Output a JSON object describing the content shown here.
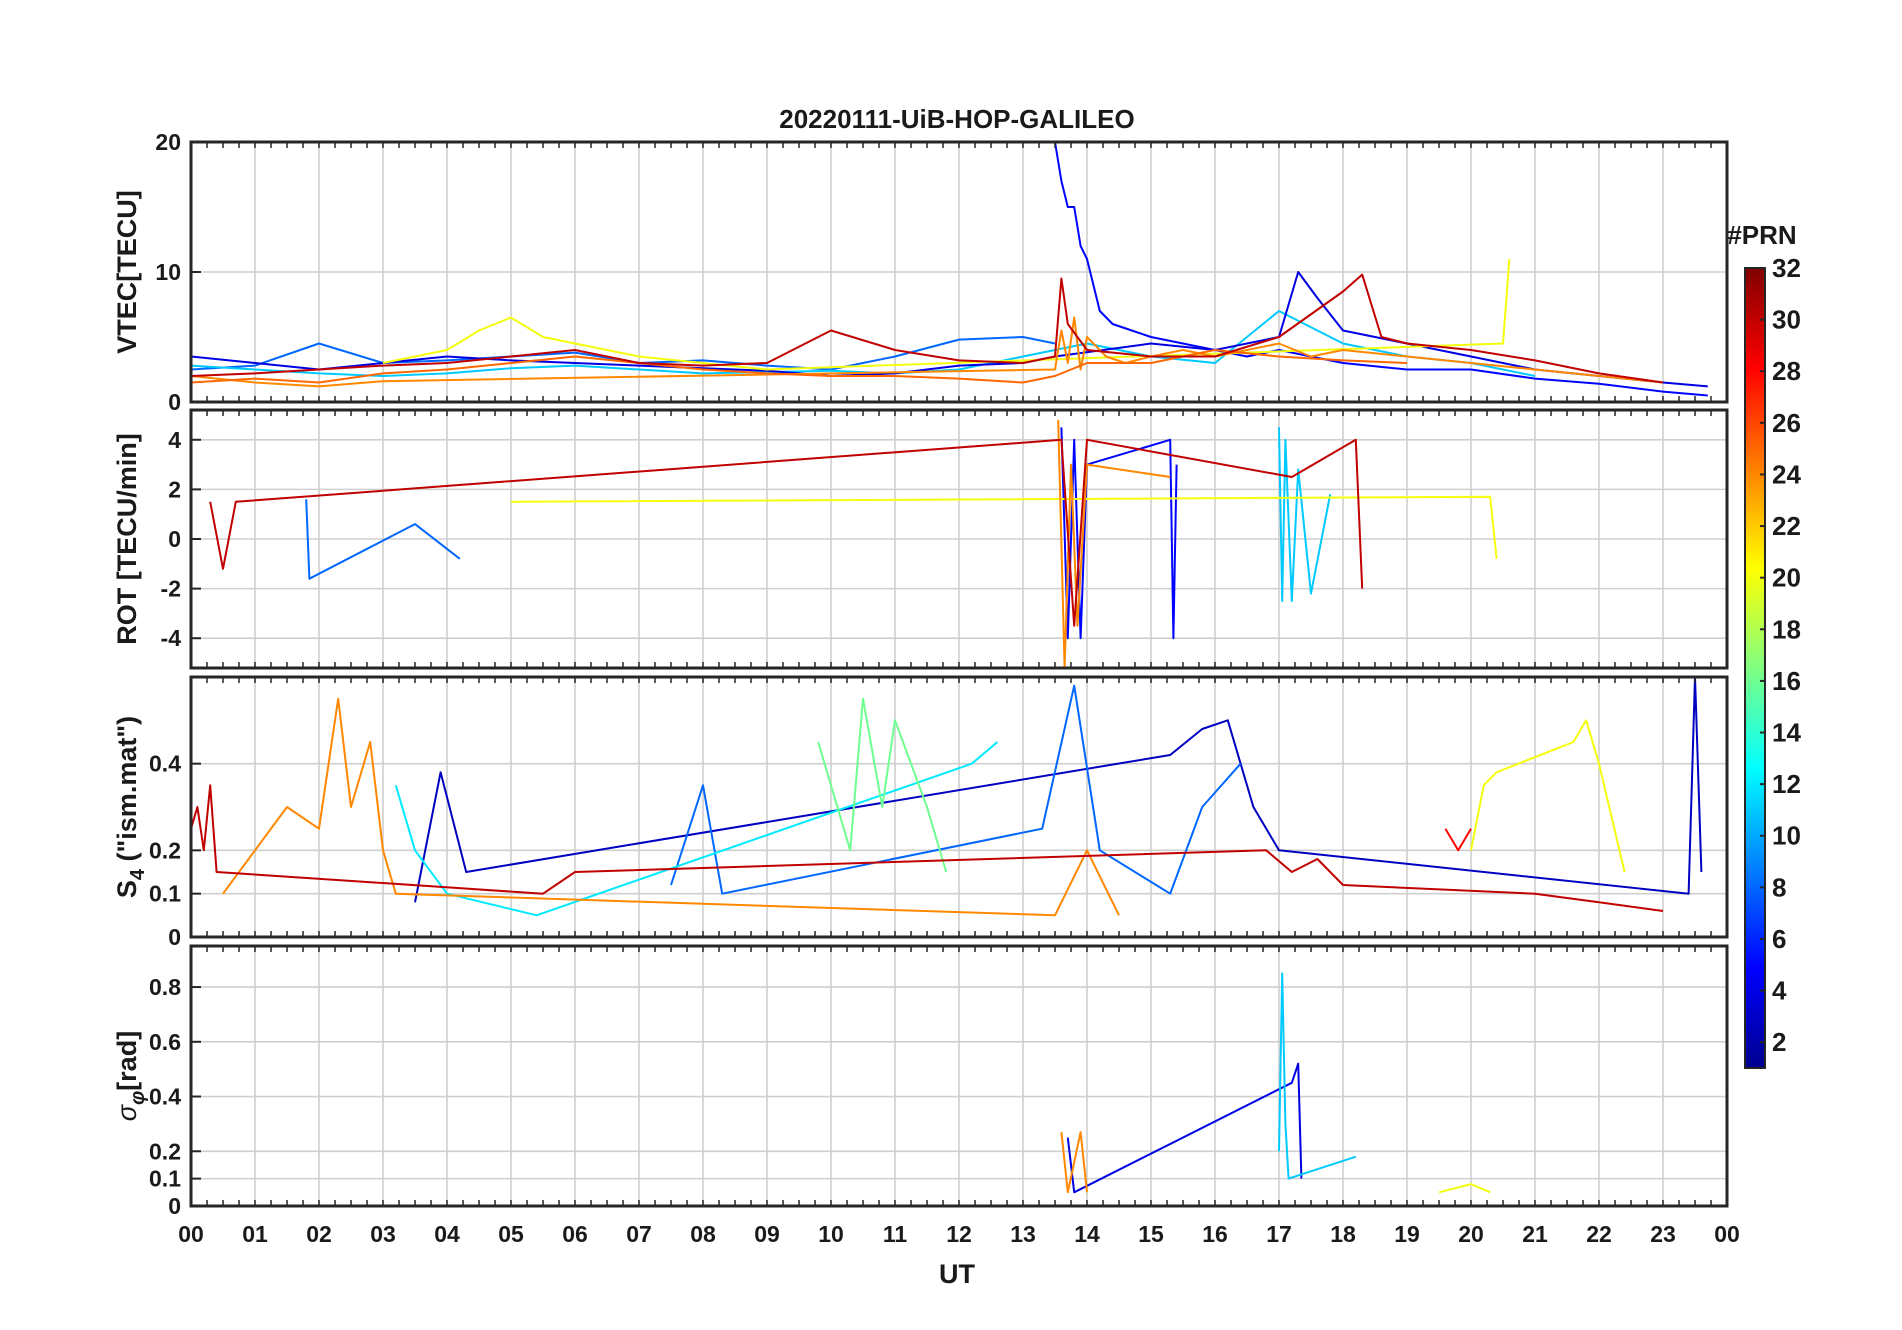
{
  "chart_data": {
    "type": "line",
    "title": "20220111-UiB-HOP-GALILEO",
    "xlabel": "UT",
    "xlim": [
      0,
      24
    ],
    "xticks": [
      0,
      1,
      2,
      3,
      4,
      5,
      6,
      7,
      8,
      9,
      10,
      11,
      12,
      13,
      14,
      15,
      16,
      17,
      18,
      19,
      20,
      21,
      22,
      23,
      24
    ],
    "xticklabels": [
      "00",
      "01",
      "02",
      "03",
      "04",
      "05",
      "06",
      "07",
      "08",
      "09",
      "10",
      "11",
      "12",
      "13",
      "14",
      "15",
      "16",
      "17",
      "18",
      "19",
      "20",
      "21",
      "22",
      "23",
      "00"
    ],
    "grid": true,
    "colorbar": {
      "label": "#PRN",
      "range": [
        1,
        32
      ],
      "ticks": [
        2,
        4,
        6,
        8,
        10,
        12,
        14,
        16,
        18,
        20,
        22,
        24,
        26,
        28,
        30,
        32
      ],
      "colormap": "jet",
      "levels": 32
    },
    "panels": [
      {
        "ylabel": "VTEC[TECU]",
        "ylim": [
          0,
          20
        ],
        "yticks": [
          0,
          10,
          20
        ],
        "series": [
          {
            "prn": 5,
            "x": [
              13.5,
              13.6,
              13.7,
              13.8,
              13.9,
              14.0,
              14.2,
              14.4,
              14.7,
              15.0,
              15.5,
              16.0,
              16.5,
              17.0,
              17.5,
              18.0,
              19.0,
              20.0,
              21.0,
              22.0,
              23.0,
              23.7
            ],
            "y": [
              20,
              17,
              15,
              15,
              12,
              11,
              7,
              6,
              5.5,
              5,
              4.5,
              4,
              3.5,
              4,
              3.5,
              3,
              2.5,
              2.5,
              1.8,
              1.4,
              0.8,
              0.5
            ]
          },
          {
            "prn": 8,
            "x": [
              0,
              1,
              2,
              3,
              4,
              5,
              6,
              7,
              8,
              9,
              10,
              11,
              12,
              13,
              13.5
            ],
            "y": [
              2.5,
              2.8,
              4.5,
              3,
              3.2,
              3.5,
              3.8,
              3,
              3.2,
              2.8,
              2.5,
              3.5,
              4.8,
              5.0,
              4.5
            ]
          },
          {
            "prn": 11,
            "x": [
              0,
              1,
              2,
              3,
              4,
              5,
              6,
              7,
              8,
              9,
              10,
              11,
              12,
              13,
              14,
              15,
              16,
              17,
              18,
              19,
              20,
              21
            ],
            "y": [
              2.8,
              2.5,
              2.2,
              2.0,
              2.2,
              2.6,
              2.8,
              2.5,
              2.2,
              2.3,
              2.4,
              2.2,
              2.5,
              3.5,
              4.5,
              3.5,
              3.0,
              7.0,
              4.5,
              3.5,
              3.0,
              2.0
            ]
          },
          {
            "prn": 4,
            "x": [
              0,
              1,
              2,
              3,
              4,
              5,
              6,
              7,
              8,
              9,
              10,
              11,
              12,
              13,
              13.5,
              15,
              16,
              17,
              17.3,
              17.6,
              18,
              19,
              20,
              21,
              22,
              23,
              23.7
            ],
            "y": [
              3.5,
              3,
              2.5,
              3,
              3.5,
              3.2,
              3,
              2.8,
              2.6,
              2.4,
              2.0,
              2.2,
              2.8,
              3.0,
              3.5,
              4.5,
              4.0,
              5.0,
              10.0,
              8.0,
              5.5,
              4.5,
              3.5,
              2.5,
              2.0,
              1.5,
              1.2
            ]
          },
          {
            "prn": 20,
            "x": [
              3,
              4,
              4.5,
              5,
              5.5,
              6,
              7,
              8,
              9,
              20.5,
              20.6
            ],
            "y": [
              3,
              4,
              5.5,
              6.5,
              5,
              4.5,
              3.5,
              3,
              2.5,
              4.5,
              11
            ]
          },
          {
            "prn": 24,
            "x": [
              0,
              1,
              2,
              3,
              13.5,
              13.6,
              13.7,
              13.8,
              13.9,
              14.0,
              14.3,
              14.6,
              15.0,
              15.5,
              16.0,
              17.0,
              17.5,
              18.0,
              19.0,
              20.0,
              21.0,
              22.0,
              23.0
            ],
            "y": [
              2,
              1.5,
              1.2,
              1.6,
              2.5,
              5.5,
              3.0,
              6.5,
              2.5,
              5.0,
              3.5,
              3.0,
              3.5,
              4.0,
              3.5,
              4.5,
              3.5,
              4.0,
              3.5,
              3.0,
              2.5,
              2.0,
              1.5
            ]
          },
          {
            "prn": 25,
            "x": [
              0,
              1,
              2,
              3,
              4,
              5,
              6,
              7,
              8,
              9,
              10,
              11,
              12,
              13,
              13.5,
              14,
              15,
              16,
              17,
              18,
              19
            ],
            "y": [
              1.5,
              1.8,
              1.5,
              2.2,
              2.5,
              3.0,
              3.5,
              3.0,
              2.5,
              2.2,
              2.0,
              2.0,
              1.8,
              1.5,
              2.0,
              3.0,
              3.0,
              4.0,
              3.5,
              3.2,
              3.0
            ]
          },
          {
            "prn": 30,
            "x": [
              0,
              1,
              2,
              3,
              4,
              5,
              6,
              7,
              8,
              9,
              10,
              11,
              12,
              13,
              13.5,
              13.6,
              13.7,
              14,
              15,
              16,
              17,
              18,
              18.3,
              18.6,
              19,
              20,
              21,
              22,
              23
            ],
            "y": [
              2.0,
              2.2,
              2.5,
              2.8,
              3.0,
              3.5,
              4.0,
              3.0,
              2.8,
              3.0,
              5.5,
              4.0,
              3.2,
              3.0,
              3.5,
              9.5,
              6.0,
              4.0,
              3.5,
              3.5,
              5.0,
              8.5,
              9.8,
              5.0,
              4.5,
              4.0,
              3.2,
              2.2,
              1.5
            ]
          }
        ]
      },
      {
        "ylabel": "ROT [TECU/min]",
        "ylim": [
          -5.2,
          5.2
        ],
        "yticks": [
          -4,
          -2,
          0,
          2,
          4
        ],
        "series": [
          {
            "prn": 5,
            "x": [
              13.6,
              13.7,
              13.8,
              13.9,
              14.0,
              15.3,
              15.35,
              15.4
            ],
            "y": [
              4.5,
              -4,
              4,
              -4,
              3,
              4,
              -4,
              3
            ]
          },
          {
            "prn": 8,
            "x": [
              1.8,
              1.85,
              3.5,
              4.2
            ],
            "y": [
              1.6,
              -1.6,
              0.6,
              -0.8
            ]
          },
          {
            "prn": 11,
            "x": [
              17.0,
              17.05,
              17.1,
              17.2,
              17.3,
              17.5,
              17.8
            ],
            "y": [
              4.5,
              -2.5,
              4.0,
              -2.5,
              2.8,
              -2.2,
              1.8
            ]
          },
          {
            "prn": 20,
            "x": [
              5.0,
              20.3,
              20.4
            ],
            "y": [
              1.5,
              1.7,
              -0.8
            ]
          },
          {
            "prn": 24,
            "x": [
              13.55,
              13.65,
              13.75,
              13.85,
              14.0,
              15.3
            ],
            "y": [
              4.8,
              -5.2,
              3.0,
              -3.5,
              3.0,
              2.5
            ]
          },
          {
            "prn": 30,
            "x": [
              0.3,
              0.5,
              0.7,
              13.6,
              13.8,
              14.0,
              17.2,
              18.2,
              18.3
            ],
            "y": [
              1.5,
              -1.2,
              1.5,
              4.0,
              -3.5,
              4.0,
              2.5,
              4.0,
              -2.0
            ]
          }
        ]
      },
      {
        "ylabel": "S_4 (\"ism.mat\")",
        "ylim": [
          0,
          0.6
        ],
        "yticks": [
          0,
          0.1,
          0.2,
          0.4
        ],
        "series": [
          {
            "prn": 3,
            "x": [
              3.5,
              3.9,
              4.3,
              15.3,
              15.8,
              16.2,
              16.6,
              17.0,
              23.4,
              23.5,
              23.6
            ],
            "y": [
              0.08,
              0.38,
              0.15,
              0.42,
              0.48,
              0.5,
              0.3,
              0.2,
              0.1,
              0.6,
              0.15
            ]
          },
          {
            "prn": 8,
            "x": [
              7.5,
              8.0,
              8.3,
              13.3,
              13.8,
              14.2,
              15.3,
              15.8,
              16.4
            ],
            "y": [
              0.12,
              0.35,
              0.1,
              0.25,
              0.58,
              0.2,
              0.1,
              0.3,
              0.4
            ]
          },
          {
            "prn": 12,
            "x": [
              3.2,
              3.5,
              4.0,
              5.4,
              12.2,
              12.6
            ],
            "y": [
              0.35,
              0.2,
              0.1,
              0.05,
              0.4,
              0.45
            ]
          },
          {
            "prn": 16,
            "x": [
              9.8,
              10.3,
              10.5,
              10.8,
              11.0,
              11.5,
              11.8
            ],
            "y": [
              0.45,
              0.2,
              0.55,
              0.3,
              0.5,
              0.3,
              0.15
            ]
          },
          {
            "prn": 20,
            "x": [
              20.0,
              20.2,
              20.4,
              21.6,
              21.8,
              22.0,
              22.4
            ],
            "y": [
              0.2,
              0.35,
              0.38,
              0.45,
              0.5,
              0.4,
              0.15
            ]
          },
          {
            "prn": 24,
            "x": [
              0.5,
              1.0,
              1.5,
              2.0,
              2.3,
              2.5,
              2.8,
              3.0,
              3.2,
              13.5,
              14.0,
              14.5
            ],
            "y": [
              0.1,
              0.2,
              0.3,
              0.25,
              0.55,
              0.3,
              0.45,
              0.2,
              0.1,
              0.05,
              0.2,
              0.05
            ]
          },
          {
            "prn": 28,
            "x": [
              19.6,
              19.8,
              20.0
            ],
            "y": [
              0.25,
              0.2,
              0.25
            ]
          },
          {
            "prn": 30,
            "x": [
              0.0,
              0.1,
              0.2,
              0.3,
              0.4,
              5.5,
              6.0,
              16.8,
              17.2,
              17.6,
              18.0,
              21.0,
              22.0,
              23.0
            ],
            "y": [
              0.25,
              0.3,
              0.2,
              0.35,
              0.15,
              0.1,
              0.15,
              0.2,
              0.15,
              0.18,
              0.12,
              0.1,
              0.08,
              0.06
            ]
          }
        ]
      },
      {
        "ylabel": "σ_φ[rad]",
        "ylim": [
          0,
          0.95
        ],
        "yticks": [
          0,
          0.1,
          0.2,
          0.4,
          0.6,
          0.8
        ],
        "series": [
          {
            "prn": 4,
            "x": [
              13.7,
              13.8,
              17.2,
              17.3,
              17.35
            ],
            "y": [
              0.25,
              0.05,
              0.45,
              0.52,
              0.1
            ]
          },
          {
            "prn": 11,
            "x": [
              17.0,
              17.05,
              17.1,
              17.15,
              18.2
            ],
            "y": [
              0.2,
              0.85,
              0.3,
              0.1,
              0.18
            ]
          },
          {
            "prn": 24,
            "x": [
              13.6,
              13.7,
              13.9,
              14.0
            ],
            "y": [
              0.27,
              0.05,
              0.27,
              0.05
            ]
          },
          {
            "prn": 20,
            "x": [
              19.5,
              20.0,
              20.3
            ],
            "y": [
              0.05,
              0.08,
              0.05
            ]
          }
        ]
      }
    ]
  }
}
